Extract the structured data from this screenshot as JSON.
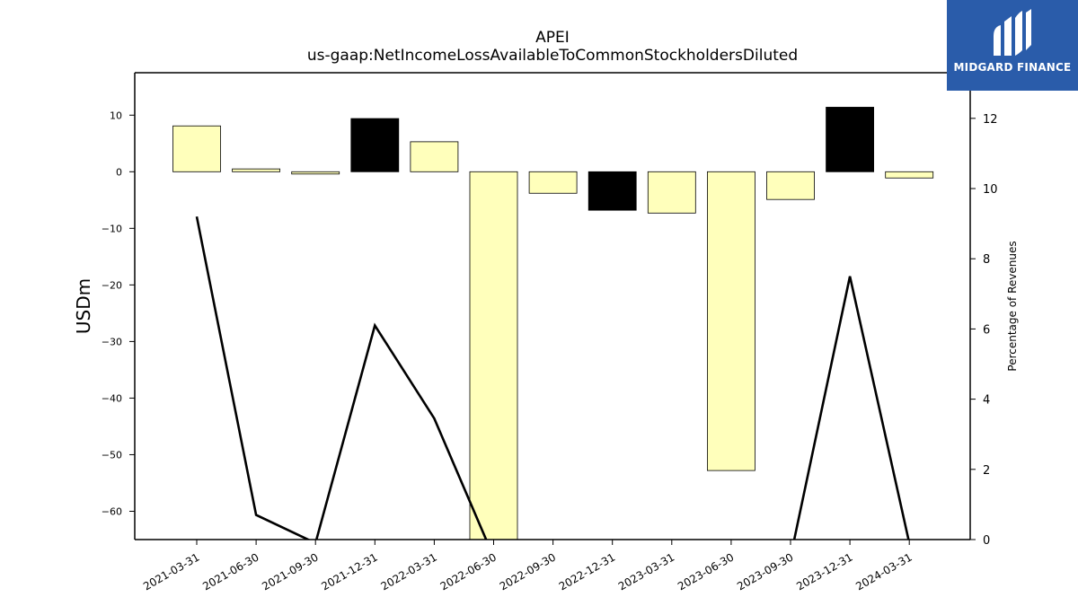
{
  "chart_data": {
    "type": "bar",
    "title": "APEI",
    "subtitle": "us-gaap:NetIncomeLossAvailableToCommonStockholdersDiluted",
    "ylabel": "USDm",
    "y2label": "Percentage of Revenues",
    "categories": [
      "2021-03-31",
      "2021-06-30",
      "2021-09-30",
      "2021-12-31",
      "2022-03-31",
      "2022-06-30",
      "2022-09-30",
      "2022-12-31",
      "2023-03-31",
      "2023-06-30",
      "2023-09-30",
      "2023-12-31",
      "2024-03-31"
    ],
    "values": [
      8.1,
      0.5,
      -0.4,
      9.4,
      5.3,
      -66.0,
      -3.8,
      -6.8,
      -7.3,
      -52.8,
      -4.9,
      11.4,
      -1.1
    ],
    "bar_colors": [
      "#ffffbb",
      "#ffffbb",
      "#ffffbb",
      "#000000",
      "#ffffbb",
      "#ffffbb",
      "#ffffbb",
      "#000000",
      "#ffffbb",
      "#ffffbb",
      "#ffffbb",
      "#000000",
      "#ffffbb"
    ],
    "series": [
      {
        "values": [
          9.2,
          0.7,
          -0.1,
          6.1,
          3.45,
          -0.5,
          null,
          null,
          null,
          null,
          -0.5,
          7.5,
          -0.1
        ]
      }
    ],
    "ylim": [
      -65,
      17.5
    ],
    "y2lim": [
      0,
      13.3
    ],
    "yticks": [
      10,
      0,
      -10,
      -20,
      -30,
      -40,
      -50,
      -60
    ],
    "y2ticks": [
      12,
      10,
      8,
      6,
      4,
      2,
      0
    ],
    "grid": false,
    "legend": "none"
  },
  "logo": {
    "text": "MIDGARD FINANCE"
  }
}
